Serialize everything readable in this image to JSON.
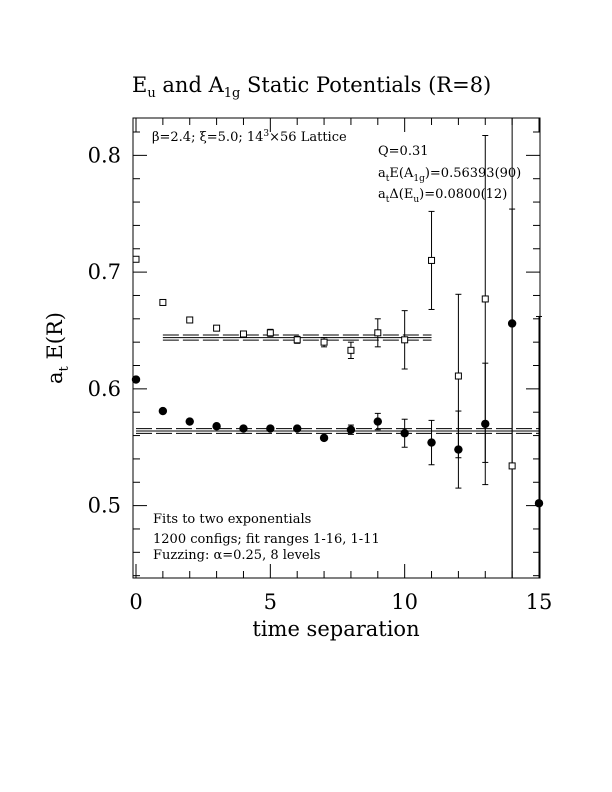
{
  "chart_data": {
    "type": "scatter",
    "title": "E",
    "title_parts": {
      "e_main": "E",
      "e_sub": "u",
      "and_text": " and ",
      "a_main": "A",
      "a_sub": "1g",
      "tail": " Static Potentials (R=8)"
    },
    "xlabel": "time separation",
    "ylabel": {
      "main": "a",
      "sub": "t",
      "rest": " E(R)"
    },
    "xlim": [
      0,
      15
    ],
    "ylim": [
      0.438,
      0.832
    ],
    "x_ticks": [
      0,
      5,
      10,
      15
    ],
    "y_ticks": [
      0.5,
      0.6,
      0.7,
      0.8
    ],
    "x_tick_labels": [
      "0",
      "5",
      "10",
      "15"
    ],
    "y_tick_labels": [
      "0.5",
      "0.6",
      "0.7",
      "0.8"
    ],
    "annotations": {
      "lattice": {
        "beta": "β=2.4; ",
        "xi": "ξ=5.0; ",
        "lat": "14",
        "sup": "3",
        "rest": "×56 Lattice"
      },
      "q": "Q=0.31",
      "e_a1g": {
        "a": "a",
        "t": "t",
        "mid": "E(A",
        "sub": "1g",
        "val": ")=0.56393(90)"
      },
      "de_eu": {
        "a": "a",
        "t": "t",
        "mid": "Δ(E",
        "sub": "u",
        "val": ")=0.0800(12)"
      },
      "fit1": "Fits to two exponentials",
      "fit2": "1200 configs; fit ranges 1-16, 1-11",
      "fit3": "Fuzzing: α=0.25, 8 levels"
    },
    "series": [
      {
        "marker": "filled-circle",
        "x": [
          0,
          1,
          2,
          3,
          4,
          5,
          6,
          7,
          8,
          9,
          10,
          11,
          12,
          13,
          14,
          15
        ],
        "y": [
          0.608,
          0.581,
          0.572,
          0.568,
          0.566,
          0.566,
          0.566,
          0.558,
          0.565,
          0.572,
          0.562,
          0.554,
          0.548,
          0.57,
          0.656,
          0.502
        ],
        "err": [
          0.001,
          0.001,
          0.001,
          0.001,
          0.001,
          0.002,
          0.002,
          0.002,
          0.004,
          0.007,
          0.012,
          0.019,
          0.033,
          0.052,
          0.22,
          0.16
        ],
        "fit_x": [
          0,
          15
        ],
        "fit_center": 0.5639,
        "fit_band": 0.002
      },
      {
        "marker": "open-square",
        "x": [
          0,
          1,
          2,
          3,
          4,
          5,
          6,
          7,
          8,
          9,
          10,
          11,
          12,
          13,
          14
        ],
        "y": [
          0.711,
          0.674,
          0.659,
          0.652,
          0.647,
          0.648,
          0.642,
          0.64,
          0.633,
          0.648,
          0.642,
          0.71,
          0.611,
          0.677,
          0.534
        ],
        "err": [
          0.001,
          0.001,
          0.001,
          0.002,
          0.002,
          0.003,
          0.003,
          0.004,
          0.007,
          0.012,
          0.025,
          0.042,
          0.07,
          0.14,
          0.22
        ],
        "fit_x": [
          1,
          11
        ],
        "fit_center": 0.6439,
        "fit_band": 0.0022
      }
    ],
    "grid": false,
    "legend": "none"
  }
}
